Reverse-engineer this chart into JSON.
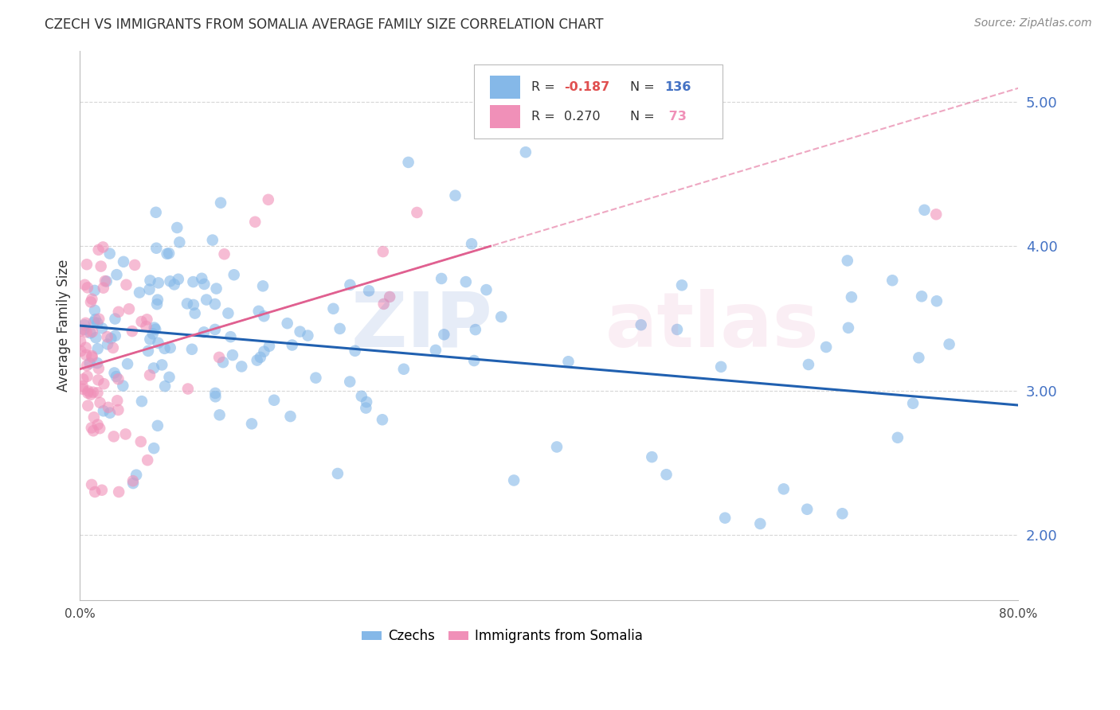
{
  "title": "CZECH VS IMMIGRANTS FROM SOMALIA AVERAGE FAMILY SIZE CORRELATION CHART",
  "source": "Source: ZipAtlas.com",
  "ylabel": "Average Family Size",
  "xmin": 0.0,
  "xmax": 0.8,
  "ymin": 1.55,
  "ymax": 5.35,
  "yticks": [
    2.0,
    3.0,
    4.0,
    5.0
  ],
  "czech_color": "#85b8e8",
  "somalia_color": "#f090b8",
  "czech_R": -0.187,
  "czech_N": 136,
  "somalia_R": 0.27,
  "somalia_N": 73,
  "axis_color": "#4472c4",
  "grid_color": "#cccccc",
  "title_color": "#333333",
  "watermark_color_blue": "#4472c4",
  "watermark_color_pink": "#e080b0",
  "czech_line_color": "#2060b0",
  "somalia_line_color": "#e06090",
  "legend_neg_color": "#e05050",
  "legend_pos_color": "#333333",
  "legend_N_czech_color": "#4472c4",
  "legend_N_somalia_color": "#e06090"
}
